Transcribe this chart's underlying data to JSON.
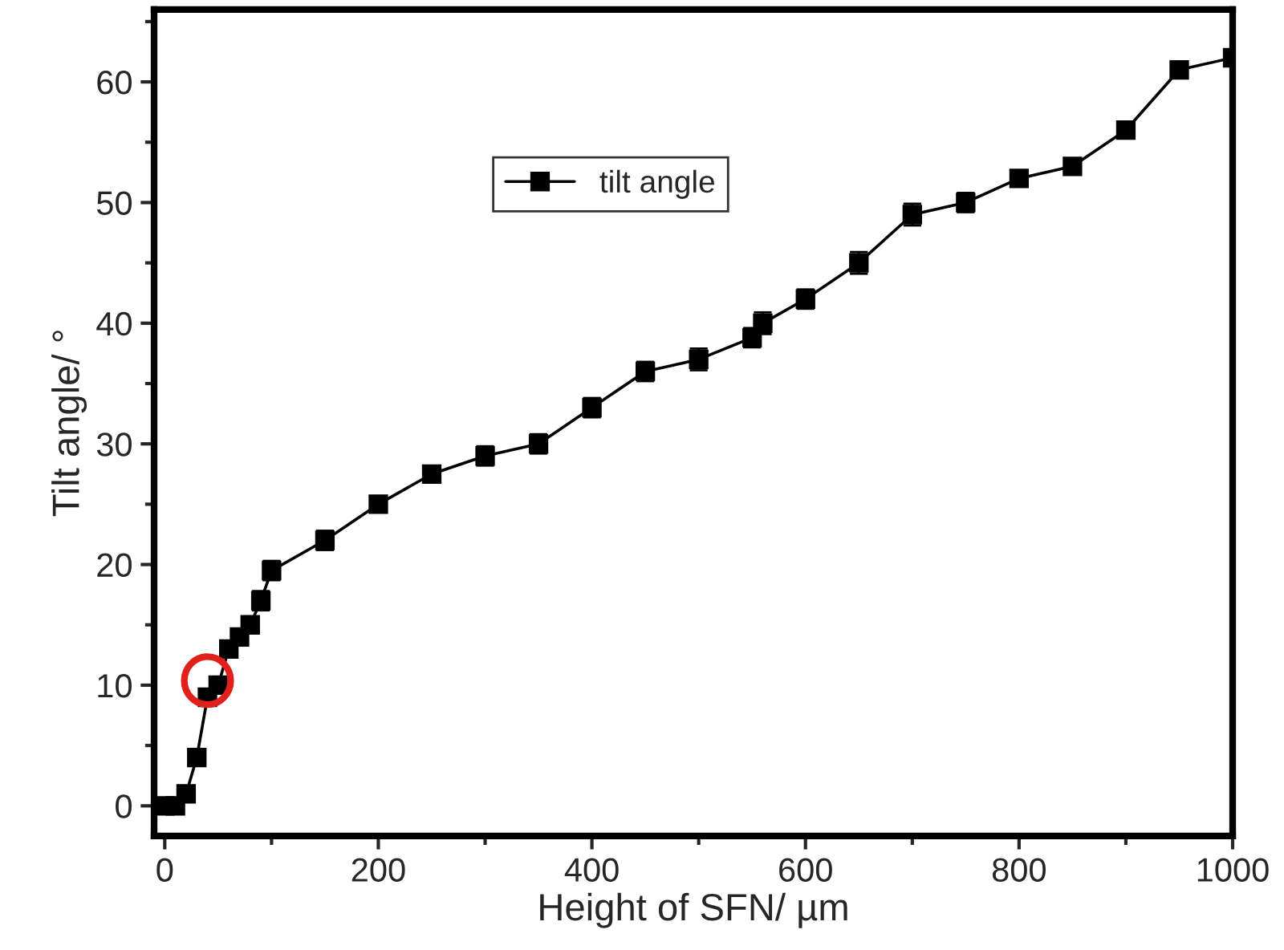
{
  "chart_data": {
    "type": "line",
    "xlabel": "Height of SFN/ µm",
    "ylabel": "Tilt angle/ °",
    "x": [
      0,
      10,
      20,
      30,
      40,
      50,
      60,
      70,
      80,
      90,
      100,
      150,
      200,
      250,
      300,
      350,
      400,
      450,
      500,
      550,
      560,
      600,
      650,
      700,
      750,
      800,
      850,
      900,
      950,
      1000
    ],
    "series": [
      {
        "name": "tilt angle",
        "color": "#000000",
        "values": [
          0,
          0,
          1,
          4,
          9,
          10,
          13,
          14,
          15,
          17,
          19.5,
          22,
          25,
          27.5,
          29,
          30,
          33,
          36,
          37,
          38.8,
          40,
          42,
          45,
          49,
          50,
          52,
          53,
          56,
          61,
          62
        ],
        "errors": [
          null,
          null,
          null,
          null,
          null,
          null,
          null,
          null,
          null,
          0.8,
          0.8,
          0.8,
          0.6,
          0.6,
          0.8,
          0.8,
          0.8,
          0.8,
          0.9,
          0.8,
          0.9,
          0.8,
          0.9,
          0.9,
          0.8,
          0.6,
          0.6,
          0.6,
          0.6,
          0.6
        ]
      }
    ],
    "xlim": [
      -10,
      1000
    ],
    "ylim": [
      -2.5,
      66
    ],
    "xticks": [
      0,
      200,
      400,
      600,
      800,
      1000
    ],
    "yticks": [
      0,
      10,
      20,
      30,
      40,
      50,
      60
    ],
    "marker": "square",
    "line_style": "solid",
    "grid": false,
    "legend": "top left"
  }
}
